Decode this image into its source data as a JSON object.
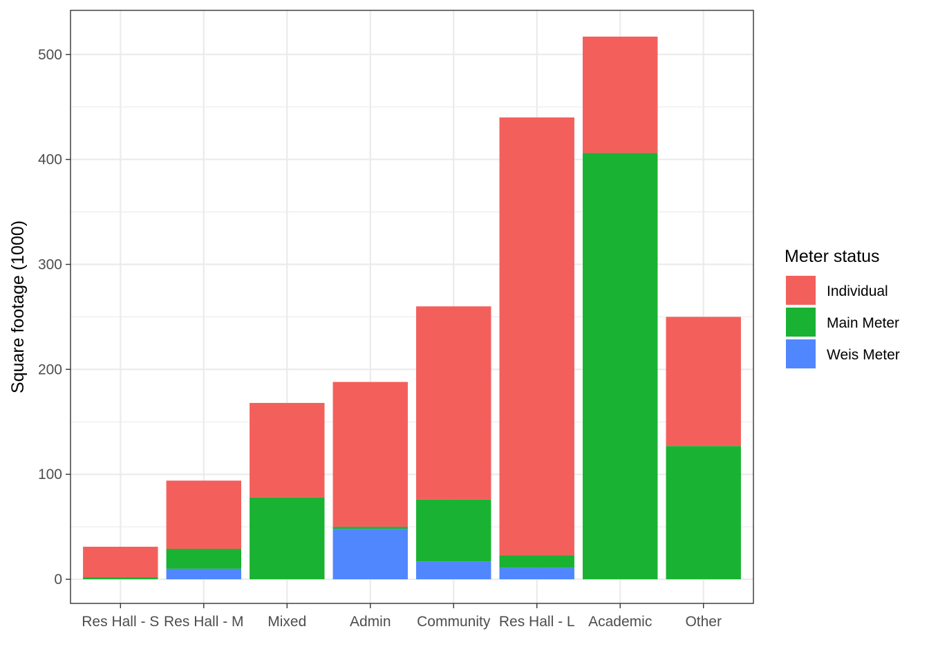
{
  "chart_data": {
    "type": "bar",
    "stacked": true,
    "categories": [
      "Res Hall - S",
      "Res Hall - M",
      "Mixed",
      "Admin",
      "Community",
      "Res Hall - L",
      "Academic",
      "Other"
    ],
    "series": [
      {
        "name": "Weis Meter",
        "color": "#5087FF",
        "values": [
          0,
          10,
          0,
          48,
          17,
          11,
          0,
          0
        ]
      },
      {
        "name": "Main Meter",
        "color": "#1AB232",
        "values": [
          2,
          19,
          78,
          2,
          59,
          12,
          406,
          127
        ]
      },
      {
        "name": "Individual",
        "color": "#F3605C",
        "values": [
          29,
          65,
          90,
          138,
          184,
          417,
          111,
          123
        ]
      }
    ],
    "xlabel": "",
    "ylabel": "Square footage (1000)",
    "ylim": [
      -23,
      542
    ],
    "yticks": [
      0,
      100,
      200,
      300,
      400,
      500
    ],
    "grid": true,
    "legend": {
      "title": "Meter status",
      "position": "right",
      "entries": [
        "Individual",
        "Main Meter",
        "Weis Meter"
      ]
    }
  }
}
